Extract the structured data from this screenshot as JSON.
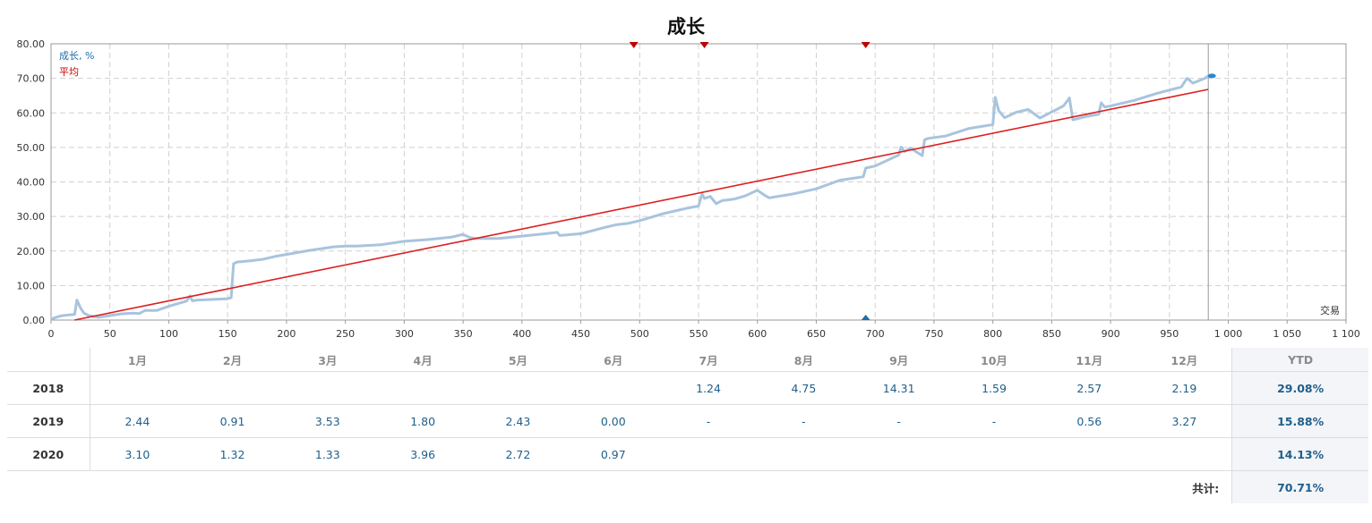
{
  "chart_data": {
    "type": "line",
    "title": "成长",
    "xlabel": "交易",
    "ylabel": "",
    "xlim": [
      0,
      1100
    ],
    "ylim": [
      0,
      80
    ],
    "x_ticks": [
      0,
      50,
      100,
      150,
      200,
      250,
      300,
      350,
      400,
      450,
      500,
      550,
      600,
      650,
      700,
      750,
      800,
      850,
      900,
      950,
      1000,
      1050,
      1100
    ],
    "x_tick_labels": [
      "0",
      "50",
      "100",
      "150",
      "200",
      "250",
      "300",
      "350",
      "400",
      "450",
      "500",
      "550",
      "600",
      "650",
      "700",
      "750",
      "800",
      "850",
      "900",
      "950",
      "1 000",
      "1 050",
      "1 100"
    ],
    "y_ticks": [
      0,
      10,
      20,
      30,
      40,
      50,
      60,
      70,
      80
    ],
    "y_tick_labels": [
      "0.00",
      "10.00",
      "20.00",
      "30.00",
      "40.00",
      "50.00",
      "60.00",
      "70.00",
      "80.00"
    ],
    "grid": true,
    "legend_position": "top-left",
    "current_x": 983,
    "series": [
      {
        "name": "成长, %",
        "color": "#a8c4de",
        "x": [
          0,
          8,
          15,
          20,
          22,
          25,
          28,
          32,
          40,
          50,
          60,
          70,
          75,
          80,
          90,
          100,
          115,
          118,
          120,
          125,
          140,
          150,
          153,
          155,
          158,
          170,
          180,
          190,
          200,
          220,
          240,
          250,
          260,
          280,
          300,
          320,
          340,
          350,
          355,
          360,
          380,
          400,
          420,
          430,
          432,
          450,
          470,
          480,
          490,
          500,
          520,
          540,
          550,
          553,
          555,
          560,
          565,
          570,
          580,
          590,
          600,
          605,
          610,
          630,
          650,
          670,
          690,
          692,
          700,
          720,
          722,
          725,
          730,
          740,
          742,
          745,
          760,
          780,
          800,
          802,
          805,
          810,
          820,
          830,
          840,
          860,
          865,
          868,
          880,
          890,
          892,
          895,
          900,
          920,
          940,
          960,
          965,
          970,
          980,
          983
        ],
        "y": [
          0.3,
          1.2,
          1.5,
          1.6,
          5.8,
          3.5,
          2.0,
          1.3,
          0.8,
          1.3,
          1.8,
          2.0,
          1.9,
          2.8,
          2.8,
          4.0,
          5.5,
          7.0,
          5.6,
          5.8,
          6.0,
          6.2,
          6.5,
          16.3,
          16.8,
          17.2,
          17.6,
          18.4,
          19.0,
          20.2,
          21.2,
          21.4,
          21.4,
          21.8,
          22.8,
          23.3,
          24.0,
          24.8,
          24.0,
          23.6,
          23.6,
          24.3,
          25.0,
          25.4,
          24.5,
          25.0,
          26.8,
          27.6,
          28.0,
          28.8,
          30.8,
          32.4,
          33.0,
          36.5,
          35.2,
          35.8,
          33.7,
          34.6,
          35.0,
          36.0,
          37.6,
          36.4,
          35.4,
          36.5,
          38.0,
          40.5,
          41.5,
          44.0,
          44.6,
          47.8,
          50.1,
          48.8,
          49.8,
          47.6,
          52.2,
          52.6,
          53.3,
          55.5,
          56.6,
          64.5,
          60.6,
          58.6,
          60.2,
          61.0,
          58.5,
          62.0,
          64.3,
          58.0,
          59.0,
          59.6,
          62.9,
          61.7,
          62.0,
          63.6,
          65.7,
          67.5,
          70.0,
          68.6,
          70.0,
          70.7
        ]
      },
      {
        "name": "平均",
        "color": "#dd1f1f",
        "x": [
          20,
          983
        ],
        "y": [
          0,
          66.8
        ]
      }
    ],
    "markers_top": [
      495,
      555,
      692
    ],
    "markers_bottom": [
      692
    ],
    "markers_top_color": "#c00000",
    "markers_bottom_color": "#1f6ea8"
  },
  "table": {
    "months": [
      "1月",
      "2月",
      "3月",
      "4月",
      "5月",
      "6月",
      "7月",
      "8月",
      "9月",
      "10月",
      "11月",
      "12月"
    ],
    "ytd_header": "YTD",
    "rows": [
      {
        "year": "2018",
        "values": [
          "",
          "",
          "",
          "",
          "",
          "",
          "1.24",
          "4.75",
          "14.31",
          "1.59",
          "2.57",
          "2.19"
        ],
        "ytd": "29.08%"
      },
      {
        "year": "2019",
        "values": [
          "2.44",
          "0.91",
          "3.53",
          "1.80",
          "2.43",
          "0.00",
          "-",
          "-",
          "-",
          "-",
          "0.56",
          "3.27"
        ],
        "ytd": "15.88%"
      },
      {
        "year": "2020",
        "values": [
          "3.10",
          "1.32",
          "1.33",
          "3.96",
          "2.72",
          "0.97",
          "",
          "",
          "",
          "",
          "",
          ""
        ],
        "ytd": "14.13%"
      }
    ],
    "total_label": "共计:",
    "total_value": "70.71%"
  }
}
